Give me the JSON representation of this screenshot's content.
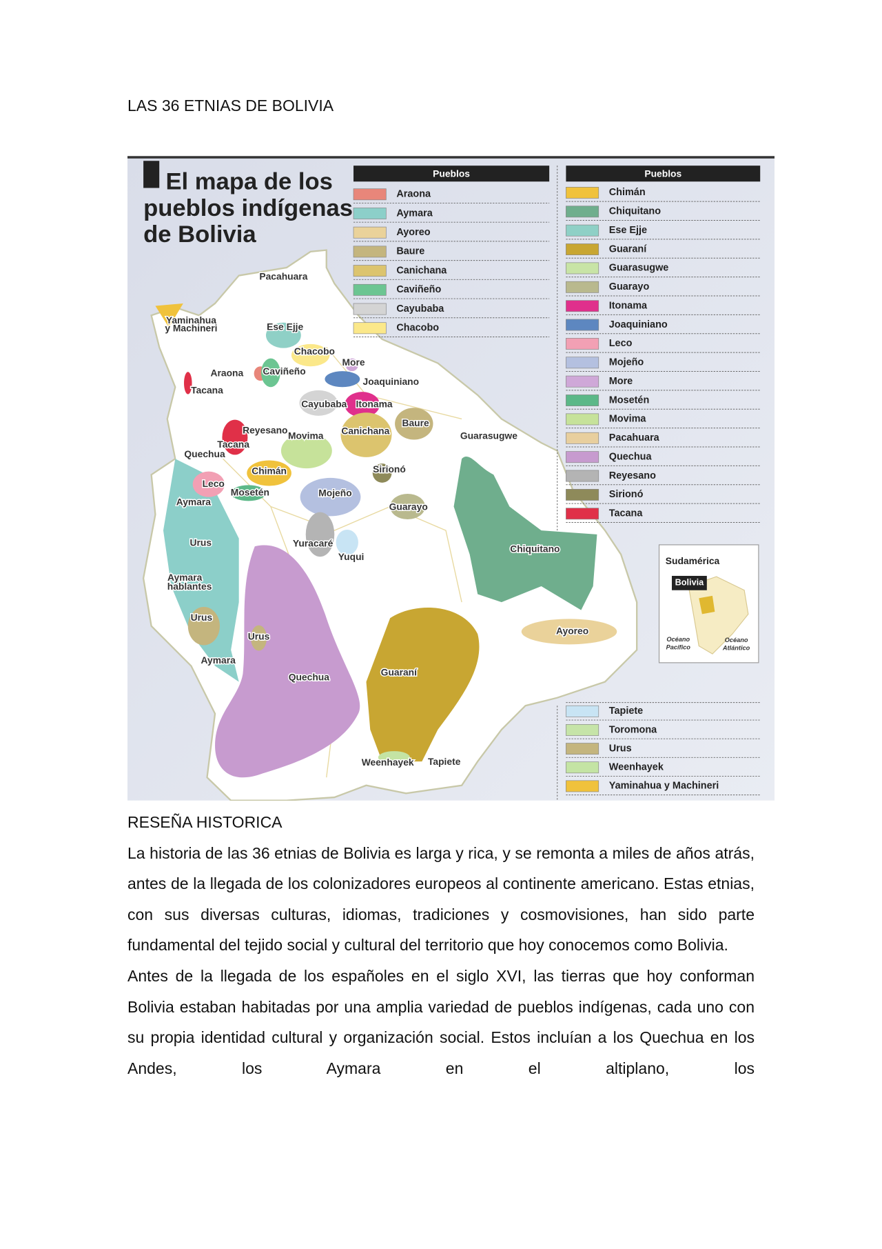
{
  "title": "LAS 36 ETNIAS DE BOLIVIA",
  "map": {
    "heading_lines": [
      "El mapa de los",
      "pueblos indígenas",
      "de Bolivia"
    ],
    "legend_left": {
      "header": "Pueblos",
      "items": [
        {
          "label": "Araona",
          "color": "#e8867a"
        },
        {
          "label": "Aymara",
          "color": "#8ccfc9"
        },
        {
          "label": "Ayoreo",
          "color": "#ead29a"
        },
        {
          "label": "Baure",
          "color": "#c4b57e"
        },
        {
          "label": "Canichana",
          "color": "#dcc46e"
        },
        {
          "label": "Caviñeño",
          "color": "#6cc592"
        },
        {
          "label": "Cayubaba",
          "color": "#d4d4d4"
        },
        {
          "label": "Chacobo",
          "color": "#fbe88a"
        }
      ]
    },
    "legend_right": {
      "header": "Pueblos",
      "items": [
        {
          "label": "Chimán",
          "color": "#f0c23c"
        },
        {
          "label": "Chiquitano",
          "color": "#6fae8d"
        },
        {
          "label": "Ese Ejje",
          "color": "#8fd0c6"
        },
        {
          "label": "Guaraní",
          "color": "#c8a632"
        },
        {
          "label": "Guarasugwe",
          "color": "#c8e4a6"
        },
        {
          "label": "Guarayo",
          "color": "#b9b98e"
        },
        {
          "label": "Itonama",
          "color": "#e0308c"
        },
        {
          "label": "Joaquiniano",
          "color": "#5d87c0"
        },
        {
          "label": "Leco",
          "color": "#f2a0b4"
        },
        {
          "label": "Mojeño",
          "color": "#b4c0e0"
        },
        {
          "label": "More",
          "color": "#cfa8d8"
        },
        {
          "label": "Mosetén",
          "color": "#5cb888"
        },
        {
          "label": "Movima",
          "color": "#c6e29a"
        },
        {
          "label": "Pacahuara",
          "color": "#e8cf9e"
        },
        {
          "label": "Quechua",
          "color": "#c79bcf"
        },
        {
          "label": "Reyesano",
          "color": "#b4b4b4"
        },
        {
          "label": "Sirionó",
          "color": "#8e8a5a"
        },
        {
          "label": "Tacana",
          "color": "#e03048"
        }
      ]
    },
    "legend_bottom": {
      "items": [
        {
          "label": "Tapiete",
          "color": "#c8e4f4"
        },
        {
          "label": "Toromona",
          "color": "#c6e4a8"
        },
        {
          "label": "Urus",
          "color": "#c4b57e"
        },
        {
          "label": "Weenhayek",
          "color": "#c4e4a4"
        },
        {
          "label": "Yaminahua y Machineri",
          "color": "#f0c23c"
        }
      ]
    },
    "map_labels": [
      "Pacahuara",
      "Yaminahua",
      "y Machineri",
      "Ese Ejje",
      "Chacobo",
      "More",
      "Araona",
      "Caviñeño",
      "Joaquiniano",
      "Tacana",
      "Cayubaba",
      "Itonama",
      "Baure",
      "Reyesano",
      "Movima",
      "Canichana",
      "Guarasugwe",
      "Tacana",
      "Quechua",
      "Chimán",
      "Sirionó",
      "Leco",
      "Mosetén",
      "Mojeño",
      "Aymara",
      "Guarayo",
      "Urus",
      "Yuracaré",
      "Yuqui",
      "Chiquitano",
      "Aymara",
      "hablantes",
      "Urus",
      "Ayoreo",
      "Urus",
      "Aymara",
      "Guaraní",
      "Quechua",
      "Weenhayek",
      "Tapiete"
    ],
    "inset": {
      "title": "Sudamérica",
      "label": "Bolivia",
      "pacific": [
        "Océano",
        "Pacífico"
      ],
      "atlantic": [
        "Océano",
        "Atlántico"
      ]
    }
  },
  "section_heading": "RESEÑA HISTORICA",
  "paragraphs": [
    "La historia de las 36 etnias de Bolivia es larga y rica, y se remonta a miles de años atrás, antes de la llegada de los colonizadores europeos al continente americano. Estas etnias, con sus diversas culturas, idiomas, tradiciones y cosmovisiones, han sido parte fundamental del tejido social y cultural del territorio que hoy conocemos como Bolivia.",
    "Antes de la llegada de los españoles en el siglo XVI, las tierras que hoy conforman Bolivia estaban habitadas por una amplia variedad de pueblos indígenas, cada uno con su propia identidad cultural y organización social. Estos incluían a los Quechua en los Andes, los Aymara en el altiplano, los"
  ]
}
